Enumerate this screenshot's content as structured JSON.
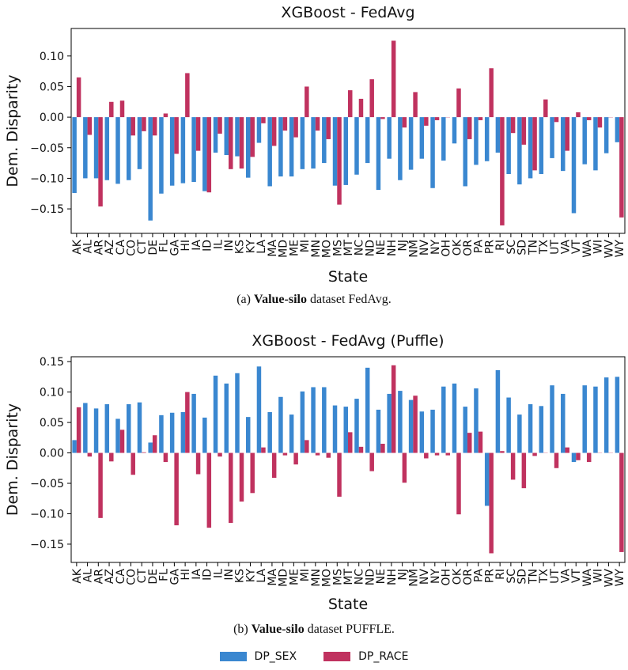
{
  "colors": {
    "sex": "#3a87d0",
    "race": "#c0325f"
  },
  "legend": {
    "sex_label": "DP_SEX",
    "race_label": "DP_RACE"
  },
  "captions": [
    {
      "prefix": "(a) ",
      "bold": "Value-silo",
      "rest": " dataset FedAvg."
    },
    {
      "prefix": "(b) ",
      "bold": "Value-silo",
      "rest": " dataset PUFFLE."
    }
  ],
  "chart_data": [
    {
      "type": "bar",
      "title": "XGBoost - FedAvg",
      "xlabel": "State",
      "ylabel": "Dem. Disparity",
      "ylim": [
        -0.19,
        0.145
      ],
      "yticks": [
        -0.15,
        -0.1,
        -0.05,
        0.0,
        0.05,
        0.1
      ],
      "ytick_labels": [
        "−0.15",
        "−0.10",
        "−0.05",
        "0.00",
        "0.05",
        "0.10"
      ],
      "categories": [
        "AK",
        "AL",
        "AR",
        "AZ",
        "CA",
        "CO",
        "CT",
        "DE",
        "FL",
        "GA",
        "HI",
        "IA",
        "ID",
        "IL",
        "IN",
        "KS",
        "KY",
        "LA",
        "MA",
        "MD",
        "ME",
        "MI",
        "MN",
        "MO",
        "MS",
        "MT",
        "NC",
        "ND",
        "NE",
        "NH",
        "NJ",
        "NM",
        "NV",
        "NY",
        "OH",
        "OK",
        "OR",
        "PA",
        "PR",
        "RI",
        "SC",
        "SD",
        "TN",
        "TX",
        "UT",
        "VA",
        "VT",
        "WA",
        "WI",
        "WV",
        "WY"
      ],
      "series": [
        {
          "name": "DP_SEX",
          "values": [
            -0.124,
            -0.1,
            -0.1,
            -0.103,
            -0.109,
            -0.103,
            -0.085,
            -0.169,
            -0.125,
            -0.112,
            -0.108,
            -0.106,
            -0.121,
            -0.058,
            -0.062,
            -0.064,
            -0.099,
            -0.042,
            -0.113,
            -0.097,
            -0.097,
            -0.085,
            -0.084,
            -0.075,
            -0.112,
            -0.111,
            -0.094,
            -0.075,
            -0.119,
            -0.068,
            -0.103,
            -0.086,
            -0.068,
            -0.116,
            -0.071,
            -0.043,
            -0.113,
            -0.078,
            -0.072,
            -0.058,
            -0.093,
            -0.11,
            -0.1,
            -0.093,
            -0.067,
            -0.088,
            -0.157,
            -0.077,
            -0.087,
            -0.059,
            -0.041
          ]
        },
        {
          "name": "DP_RACE",
          "values": [
            0.065,
            -0.029,
            -0.146,
            0.025,
            0.027,
            -0.03,
            -0.023,
            -0.03,
            0.006,
            -0.06,
            0.072,
            -0.055,
            -0.123,
            -0.027,
            -0.085,
            -0.084,
            -0.065,
            -0.01,
            -0.047,
            -0.022,
            -0.033,
            0.05,
            -0.022,
            -0.036,
            -0.143,
            0.044,
            0.03,
            0.062,
            -0.003,
            0.125,
            -0.017,
            0.041,
            -0.014,
            -0.005,
            0.0,
            0.047,
            -0.036,
            -0.005,
            0.08,
            -0.177,
            -0.026,
            -0.045,
            -0.087,
            0.029,
            -0.008,
            -0.055,
            0.008,
            -0.005,
            -0.017,
            0.0,
            -0.164
          ]
        }
      ]
    },
    {
      "type": "bar",
      "title": "XGBoost - FedAvg (Puffle)",
      "xlabel": "State",
      "ylabel": "Dem. Disparity",
      "ylim": [
        -0.18,
        0.158
      ],
      "yticks": [
        -0.15,
        -0.1,
        -0.05,
        0.0,
        0.05,
        0.1,
        0.15
      ],
      "ytick_labels": [
        "−0.15",
        "−0.10",
        "−0.05",
        "0.00",
        "0.05",
        "0.10",
        "0.15"
      ],
      "categories": [
        "AK",
        "AL",
        "AR",
        "AZ",
        "CA",
        "CO",
        "CT",
        "DE",
        "FL",
        "GA",
        "HI",
        "IA",
        "ID",
        "IL",
        "IN",
        "KS",
        "KY",
        "LA",
        "MA",
        "MD",
        "ME",
        "MI",
        "MN",
        "MO",
        "MS",
        "MT",
        "NC",
        "ND",
        "NE",
        "NH",
        "NJ",
        "NM",
        "NV",
        "NY",
        "OH",
        "OK",
        "OR",
        "PA",
        "PR",
        "RI",
        "SC",
        "SD",
        "TN",
        "TX",
        "UT",
        "VA",
        "VT",
        "WA",
        "WI",
        "WV",
        "WY"
      ],
      "series": [
        {
          "name": "DP_SEX",
          "values": [
            0.021,
            0.082,
            0.073,
            0.08,
            0.056,
            0.08,
            0.083,
            0.017,
            0.062,
            0.066,
            0.067,
            0.097,
            0.058,
            0.127,
            0.114,
            0.131,
            0.059,
            0.142,
            0.067,
            0.092,
            0.063,
            0.101,
            0.108,
            0.108,
            0.078,
            0.076,
            0.089,
            0.14,
            0.071,
            0.097,
            0.102,
            0.087,
            0.068,
            0.071,
            0.109,
            0.114,
            0.076,
            0.106,
            -0.087,
            0.136,
            0.091,
            0.063,
            0.08,
            0.077,
            0.111,
            0.097,
            -0.015,
            0.111,
            0.109,
            0.124,
            0.125
          ]
        },
        {
          "name": "DP_RACE",
          "values": [
            0.075,
            -0.006,
            -0.107,
            -0.014,
            0.038,
            -0.036,
            0.001,
            0.029,
            -0.015,
            -0.119,
            0.1,
            -0.035,
            -0.123,
            -0.006,
            -0.115,
            -0.08,
            -0.066,
            0.009,
            -0.041,
            -0.004,
            -0.019,
            0.021,
            -0.004,
            -0.008,
            -0.072,
            0.034,
            0.01,
            -0.03,
            0.015,
            0.144,
            -0.049,
            0.094,
            -0.009,
            -0.004,
            -0.004,
            -0.101,
            0.033,
            0.035,
            -0.165,
            0.003,
            -0.044,
            -0.058,
            -0.005,
            0.0,
            -0.025,
            0.009,
            -0.012,
            -0.015,
            0.0,
            0.0,
            -0.163
          ]
        }
      ]
    }
  ]
}
